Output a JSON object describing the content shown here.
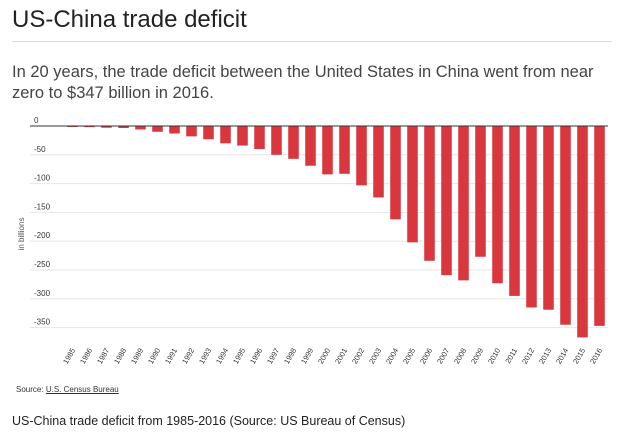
{
  "header": {
    "title": "US-China trade deficit",
    "subtitle": "In 20 years, the trade deficit between the United States in China went from near zero to $347 billion in 2016."
  },
  "source": {
    "label": "Source:",
    "link_text": "U.S. Census Bureau"
  },
  "caption": "US-China trade deficit from 1985-2016 (Source: US Bureau of Census)",
  "colors": {
    "bar": "#d9363e",
    "grid": "#e6e6e6",
    "axis": "#333333"
  },
  "chart_data": {
    "type": "bar",
    "title": "US-China trade deficit",
    "ylabel": "in billions",
    "xlabel": "",
    "ylim": [
      -375,
      0
    ],
    "yticks": [
      0,
      -50,
      -100,
      -150,
      -200,
      -250,
      -300,
      -350
    ],
    "grid": true,
    "categories": [
      "1985",
      "1986",
      "1987",
      "1988",
      "1989",
      "1990",
      "1991",
      "1992",
      "1993",
      "1994",
      "1995",
      "1996",
      "1997",
      "1998",
      "1999",
      "2000",
      "2001",
      "2002",
      "2003",
      "2004",
      "2005",
      "2006",
      "2007",
      "2008",
      "2009",
      "2010",
      "2011",
      "2012",
      "2013",
      "2014",
      "2015",
      "2016"
    ],
    "values": [
      -0.2,
      -2,
      -3,
      -3.5,
      -6,
      -10,
      -13,
      -18,
      -23,
      -30,
      -34,
      -40,
      -50,
      -57,
      -69,
      -84,
      -83,
      -103,
      -124,
      -162,
      -202,
      -234,
      -259,
      -268,
      -227,
      -273,
      -295,
      -315,
      -319,
      -345,
      -367,
      -347
    ]
  }
}
